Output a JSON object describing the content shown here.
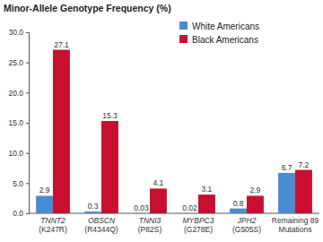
{
  "chart_data": {
    "type": "bar",
    "title": "Minor-Allele Genotype Frequency (%)",
    "categories": [
      "TNNT2\n(K247R)",
      "OBSCN\n(R4344Q)",
      "TNNI3\n(P82S)",
      "MYBPC3\n(G278E)",
      "JPH2\n(G505S)",
      "Remaining 89\nMutations"
    ],
    "series": [
      {
        "name": "White Americans",
        "color": "#4a8cd0",
        "values": [
          2.9,
          0.3,
          0.03,
          0.02,
          0.8,
          6.7
        ]
      },
      {
        "name": "Black Americans",
        "color": "#c8102e",
        "values": [
          27.1,
          15.3,
          4.1,
          3.1,
          2.9,
          7.2
        ]
      }
    ],
    "ylim": [
      0,
      30
    ],
    "yticks": [
      {
        "value": 0,
        "label": "0.0"
      },
      {
        "value": 5,
        "label": "5.0"
      },
      {
        "value": 10,
        "label": "10.0"
      },
      {
        "value": 15,
        "label": "15.0"
      },
      {
        "value": 20,
        "label": "20.0"
      },
      {
        "value": 25,
        "label": "25.0"
      },
      {
        "value": 30,
        "label": "30.0"
      }
    ],
    "grid": false,
    "legend": "top-right",
    "data_labels": true
  }
}
